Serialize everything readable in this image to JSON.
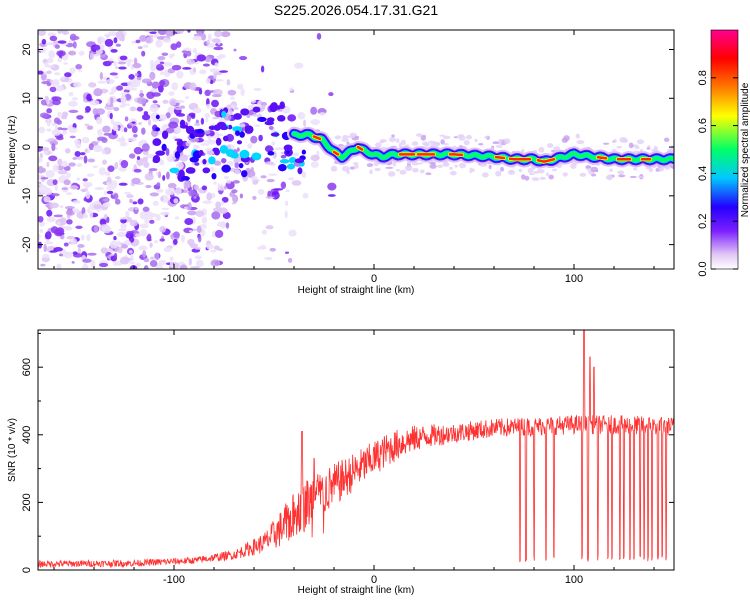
{
  "title": "S225.2026.054.17.31.G21",
  "chart_data": [
    {
      "type": "heatmap",
      "xlabel": "Height of straight line (km)",
      "ylabel": "Frequency (Hz)",
      "xlim": [
        -168,
        150
      ],
      "ylim": [
        -25,
        24
      ],
      "xticks": [
        -100,
        0,
        100
      ],
      "yticks": [
        -20,
        -10,
        0,
        10,
        20
      ],
      "grid": false,
      "ridge": {
        "x": [
          -40,
          -32,
          -26,
          -20,
          -16,
          -12,
          -8,
          -4,
          0,
          4,
          10,
          20,
          40,
          60,
          70,
          80,
          85,
          90,
          100,
          110,
          120,
          130,
          140,
          150
        ],
        "frequency": [
          2.5,
          2.5,
          1.5,
          -1,
          -2,
          -1,
          0,
          -1,
          -1.5,
          -2,
          -1.5,
          -1.5,
          -1.5,
          -2,
          -2.5,
          -2.5,
          -3,
          -2.5,
          -1.5,
          -2,
          -2.5,
          -2.5,
          -2.5,
          -2.5
        ]
      },
      "colorbar": {
        "label": "Normalized spectral amplitude",
        "range": [
          0,
          1
        ],
        "ticks": [
          "0.0",
          "0.2",
          "0.4",
          "0.6",
          "0.8"
        ],
        "colors": [
          "#ffffff",
          "#e2c8f6",
          "#7b1fff",
          "#2400ff",
          "#00c8ff",
          "#00ff66",
          "#ffff00",
          "#ff7a00",
          "#ff0000",
          "#ff0090"
        ]
      }
    },
    {
      "type": "line",
      "xlabel": "Height of straight line (km)",
      "ylabel": "SNR (10 * v/v)",
      "xlim": [
        -168,
        150
      ],
      "ylim": [
        0,
        710
      ],
      "xticks": [
        -100,
        0,
        100
      ],
      "yticks": [
        0,
        200,
        400,
        600
      ],
      "color": "#ff3030",
      "envelope": {
        "x": [
          -168,
          -120,
          -90,
          -70,
          -55,
          -45,
          -35,
          -25,
          -15,
          -5,
          5,
          15,
          25,
          40,
          60,
          80,
          100,
          120,
          150
        ],
        "baseline": [
          18,
          20,
          28,
          45,
          80,
          130,
          190,
          230,
          270,
          310,
          350,
          380,
          395,
          405,
          420,
          425,
          430,
          430,
          425
        ],
        "noise": [
          10,
          10,
          10,
          14,
          30,
          60,
          80,
          70,
          60,
          55,
          50,
          45,
          35,
          30,
          28,
          28,
          28,
          28,
          28
        ]
      },
      "dropouts": [
        73,
        76,
        80,
        86,
        90,
        104,
        107,
        112,
        117,
        119,
        123,
        125,
        128,
        130,
        133,
        135,
        137,
        139,
        142,
        144,
        146
      ],
      "spikes": [
        {
          "x": -36,
          "y": 410
        },
        {
          "x": -30,
          "y": 330
        },
        {
          "x": 105,
          "y": 708
        },
        {
          "x": 108,
          "y": 630
        },
        {
          "x": 110,
          "y": 600
        }
      ]
    }
  ]
}
